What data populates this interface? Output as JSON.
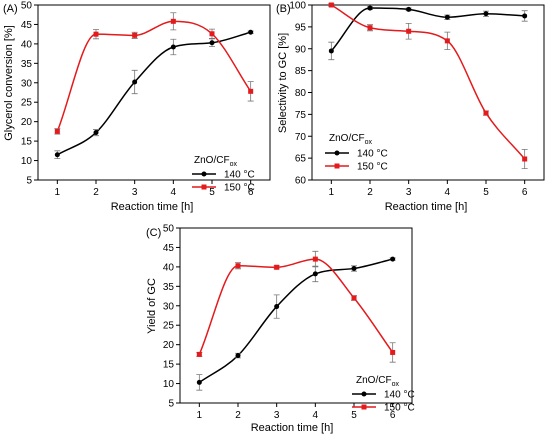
{
  "colors": {
    "140": "#000000",
    "150": "#e41a1c"
  },
  "legend_title": "ZnO/CF",
  "legend_title_subscript": "ox",
  "chart_data": [
    {
      "type": "line",
      "panel_label": "(A)",
      "xlabel": "Reaction time [h]",
      "ylabel": "Glycerol conversion [%]",
      "x": [
        1,
        2,
        3,
        4,
        5,
        6
      ],
      "xlim": [
        0.5,
        6.5
      ],
      "ylim": [
        5,
        50
      ],
      "yticks": [
        5,
        10,
        15,
        20,
        25,
        30,
        35,
        40,
        45,
        50
      ],
      "legend_position": "bottom-right",
      "series": [
        {
          "name": "140 °C",
          "color": "#000000",
          "values": [
            11.5,
            17.2,
            30.2,
            39.2,
            40.3,
            43.0
          ],
          "errors": [
            1.0,
            0.8,
            3.0,
            2.0,
            1.0,
            0.3
          ]
        },
        {
          "name": "150 °C",
          "color": "#e41a1c",
          "values": [
            17.5,
            42.5,
            42.2,
            45.8,
            42.6,
            27.8
          ],
          "errors": [
            0.7,
            1.2,
            0.8,
            2.2,
            1.2,
            2.5
          ]
        }
      ]
    },
    {
      "type": "line",
      "panel_label": "(B)",
      "xlabel": "Reaction time [h]",
      "ylabel": "Selectivity to GC [%]",
      "x": [
        1,
        2,
        3,
        4,
        5,
        6
      ],
      "xlim": [
        0.5,
        6.5
      ],
      "ylim": [
        60,
        100
      ],
      "yticks": [
        60,
        65,
        70,
        75,
        80,
        85,
        90,
        95,
        100
      ],
      "legend_position": "bottom-left",
      "series": [
        {
          "name": "140 °C",
          "color": "#000000",
          "values": [
            89.5,
            99.3,
            99.0,
            97.2,
            98.0,
            97.5
          ],
          "errors": [
            2.0,
            0.3,
            0.3,
            0.5,
            0.6,
            1.2
          ]
        },
        {
          "name": "150 °C",
          "color": "#e41a1c",
          "values": [
            100.0,
            94.8,
            94.0,
            91.8,
            75.3,
            64.8
          ],
          "errors": [
            0.3,
            0.7,
            1.8,
            2.0,
            0.5,
            2.2
          ]
        }
      ]
    },
    {
      "type": "line",
      "panel_label": "(C)",
      "xlabel": "Reaction time [h]",
      "ylabel": "Yield of GC",
      "x": [
        1,
        2,
        3,
        4,
        5,
        6
      ],
      "xlim": [
        0.5,
        6.5
      ],
      "ylim": [
        5,
        50
      ],
      "yticks": [
        5,
        10,
        15,
        20,
        25,
        30,
        35,
        40,
        45,
        50
      ],
      "legend_position": "bottom-right",
      "series": [
        {
          "name": "140 °C",
          "color": "#000000",
          "values": [
            10.3,
            17.2,
            29.8,
            38.2,
            39.6,
            42.0
          ],
          "errors": [
            2.0,
            0.6,
            3.0,
            2.0,
            0.7,
            0.3
          ]
        },
        {
          "name": "150 °C",
          "color": "#e41a1c",
          "values": [
            17.5,
            40.3,
            39.9,
            42.0,
            32.0,
            18.0
          ],
          "errors": [
            0.5,
            0.8,
            0.4,
            2.0,
            0.6,
            2.5
          ]
        }
      ]
    }
  ]
}
